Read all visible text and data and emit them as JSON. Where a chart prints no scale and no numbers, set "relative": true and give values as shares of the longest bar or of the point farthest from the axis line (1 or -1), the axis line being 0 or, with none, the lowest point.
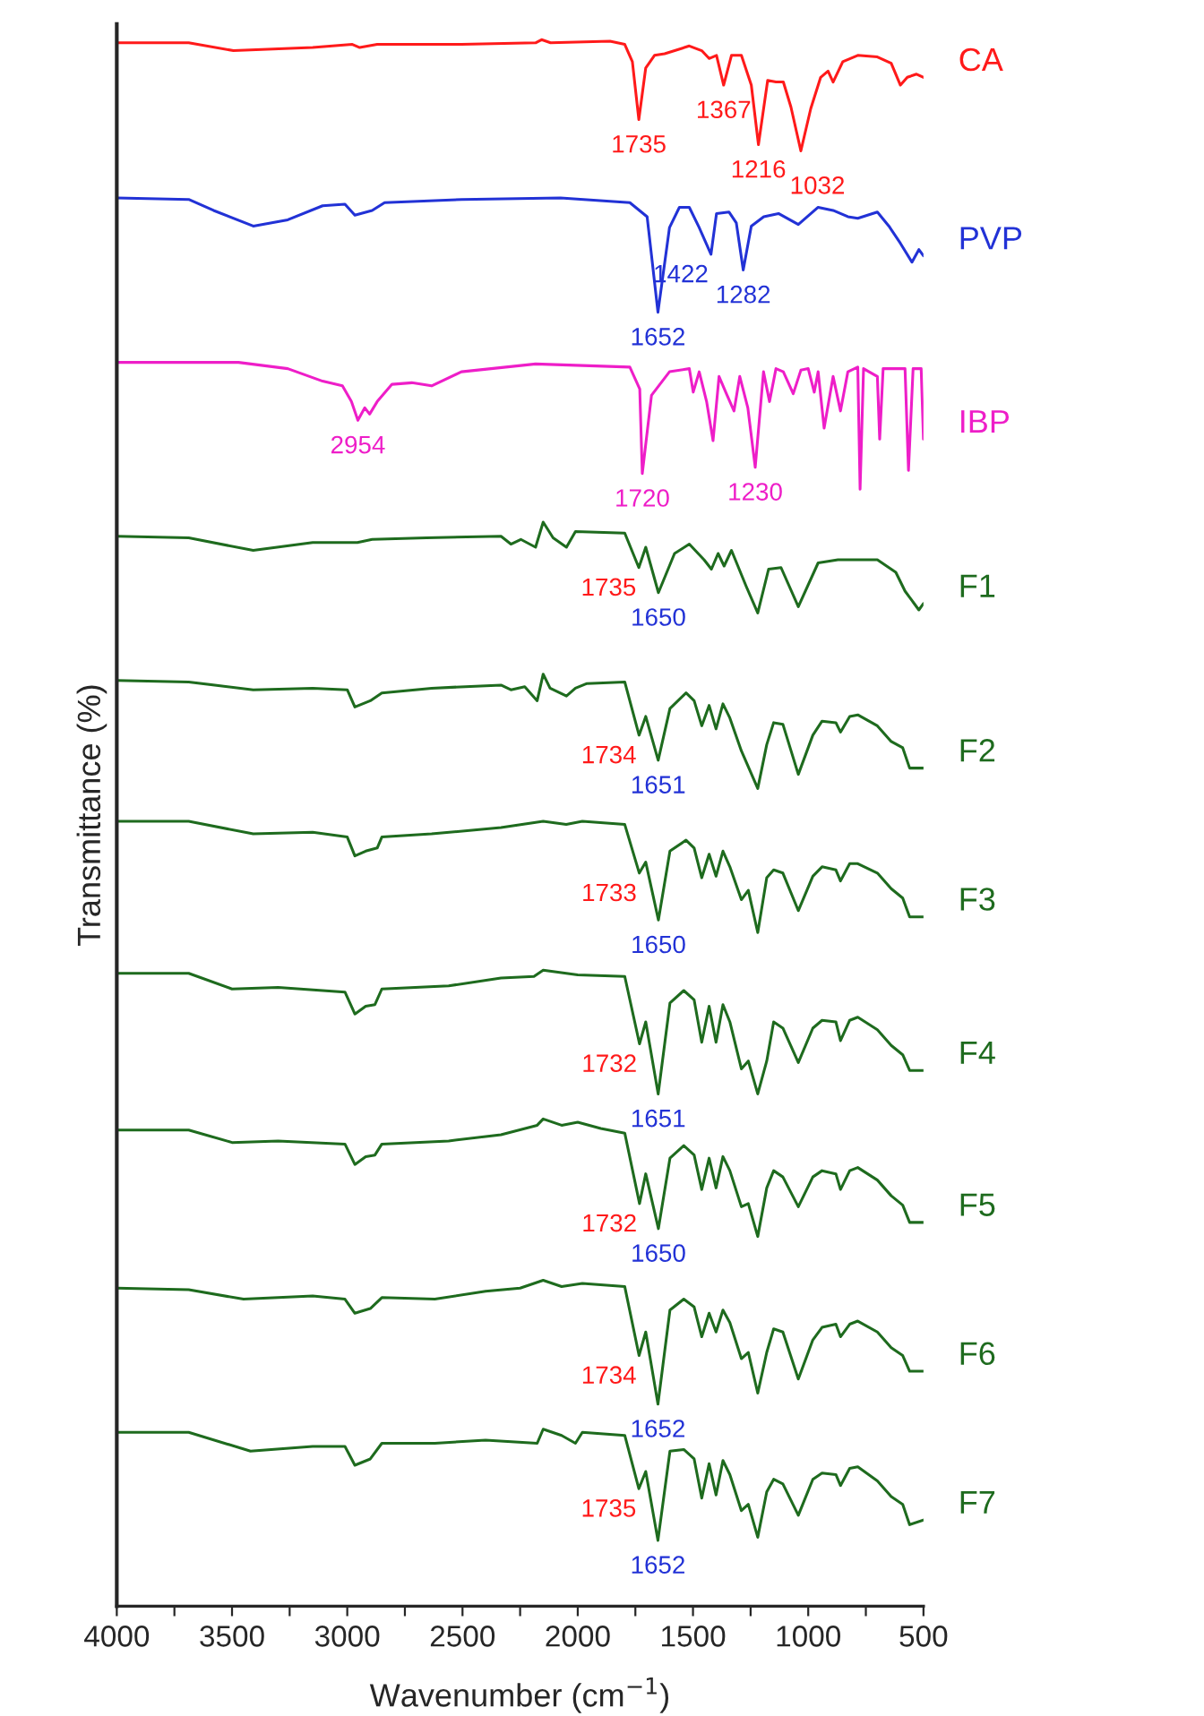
{
  "chart_data": {
    "type": "line",
    "relative": true,
    "xlabel": "Wavenumber (cm$^{−1}$)",
    "ylabel": "Transmittance (%)",
    "xlim": [
      4000,
      500
    ],
    "xticks": [
      4000,
      {
        "value": 3750,
        "label": null
      },
      3500,
      {
        "value": 3250,
        "label": null
      },
      3000,
      {
        "value": 2750,
        "label": null
      },
      2500,
      {
        "value": 2250,
        "label": null
      },
      2000,
      {
        "value": 1750,
        "label": null
      },
      1500,
      {
        "value": 1250,
        "label": null
      },
      1000,
      {
        "value": 750,
        "label": null
      },
      500
    ],
    "grid": false,
    "legend": false,
    "line_style": "solid",
    "marker": "none",
    "series": [
      {
        "name": "CA",
        "color": "#ff1a1a",
        "x": [
          4000,
          3688,
          3494,
          3150,
          2978,
          2946,
          2870,
          2505,
          2183,
          2157,
          2118,
          1860,
          1796,
          1763,
          1735,
          1705,
          1667,
          1623,
          1516,
          1462,
          1430,
          1398,
          1367,
          1333,
          1290,
          1247,
          1216,
          1176,
          1140,
          1108,
          1075,
          1032,
          989,
          946,
          914,
          892,
          850,
          785,
          700,
          640,
          600,
          570,
          530,
          500
        ],
        "values": [
          0.998,
          0.998,
          0.993,
          0.995,
          0.997,
          0.995,
          0.997,
          0.997,
          0.998,
          1.0,
          0.998,
          0.999,
          0.997,
          0.986,
          0.949,
          0.982,
          0.99,
          0.991,
          0.996,
          0.993,
          0.988,
          0.99,
          0.971,
          0.99,
          0.99,
          0.971,
          0.933,
          0.974,
          0.973,
          0.973,
          0.957,
          0.929,
          0.956,
          0.976,
          0.98,
          0.973,
          0.986,
          0.99,
          0.989,
          0.985,
          0.971,
          0.976,
          0.978,
          0.976
        ]
      },
      {
        "name": "PVP",
        "color": "#2232d6",
        "x": [
          4000,
          3688,
          3580,
          3408,
          3258,
          3107,
          3010,
          2967,
          2892,
          2838,
          2505,
          2075,
          1774,
          1699,
          1652,
          1602,
          1559,
          1516,
          1473,
          1422,
          1398,
          1344,
          1312,
          1282,
          1247,
          1193,
          1129,
          1043,
          957,
          892,
          828,
          785,
          700,
          650,
          600,
          550,
          520,
          500
        ],
        "values": [
          0.899,
          0.898,
          0.891,
          0.881,
          0.885,
          0.894,
          0.895,
          0.888,
          0.891,
          0.896,
          0.898,
          0.899,
          0.896,
          0.887,
          0.826,
          0.88,
          0.893,
          0.893,
          0.88,
          0.863,
          0.889,
          0.89,
          0.883,
          0.853,
          0.881,
          0.887,
          0.889,
          0.882,
          0.893,
          0.891,
          0.887,
          0.886,
          0.89,
          0.881,
          0.87,
          0.858,
          0.866,
          0.862
        ]
      },
      {
        "name": "IBP",
        "color": "#ee1ec8",
        "x": [
          4000,
          3472,
          3258,
          3107,
          3021,
          2982,
          2954,
          2924,
          2903,
          2870,
          2806,
          2720,
          2634,
          2505,
          2183,
          1774,
          1731,
          1720,
          1680,
          1602,
          1516,
          1499,
          1473,
          1441,
          1413,
          1387,
          1355,
          1322,
          1297,
          1262,
          1230,
          1194,
          1168,
          1140,
          1108,
          1065,
          1032,
          1000,
          974,
          957,
          931,
          892,
          860,
          828,
          785,
          775,
          760,
          700,
          690,
          675,
          640,
          580,
          565,
          545,
          510,
          500
        ],
        "values": [
          0.794,
          0.794,
          0.79,
          0.782,
          0.779,
          0.769,
          0.757,
          0.765,
          0.761,
          0.769,
          0.78,
          0.781,
          0.779,
          0.788,
          0.793,
          0.791,
          0.777,
          0.723,
          0.773,
          0.788,
          0.79,
          0.775,
          0.788,
          0.769,
          0.744,
          0.785,
          0.774,
          0.763,
          0.785,
          0.765,
          0.727,
          0.788,
          0.769,
          0.79,
          0.788,
          0.774,
          0.789,
          0.79,
          0.775,
          0.788,
          0.752,
          0.785,
          0.763,
          0.788,
          0.791,
          0.713,
          0.79,
          0.785,
          0.745,
          0.79,
          0.79,
          0.79,
          0.725,
          0.79,
          0.79,
          0.745
        ]
      },
      {
        "name": "F1",
        "color": "#1e6b1e",
        "x": [
          4000,
          3688,
          3408,
          3150,
          2956,
          2892,
          2656,
          2333,
          2290,
          2247,
          2183,
          2150,
          2107,
          2049,
          2010,
          1796,
          1735,
          1705,
          1650,
          1580,
          1516,
          1452,
          1420,
          1391,
          1365,
          1333,
          1269,
          1219,
          1172,
          1118,
          1043,
          957,
          871,
          785,
          700,
          620,
          580,
          540,
          520,
          500
        ],
        "values": [
          0.683,
          0.682,
          0.674,
          0.679,
          0.679,
          0.681,
          0.682,
          0.683,
          0.678,
          0.681,
          0.676,
          0.692,
          0.682,
          0.676,
          0.686,
          0.685,
          0.663,
          0.676,
          0.647,
          0.672,
          0.678,
          0.668,
          0.662,
          0.672,
          0.664,
          0.674,
          0.651,
          0.634,
          0.662,
          0.663,
          0.638,
          0.666,
          0.668,
          0.668,
          0.668,
          0.66,
          0.648,
          0.64,
          0.636,
          0.64
        ]
      },
      {
        "name": "F2",
        "color": "#1e6b1e",
        "x": [
          4000,
          3688,
          3408,
          3150,
          3000,
          2967,
          2900,
          2850,
          2634,
          2333,
          2290,
          2230,
          2176,
          2150,
          2120,
          2049,
          2010,
          1960,
          1796,
          1734,
          1705,
          1651,
          1600,
          1530,
          1495,
          1462,
          1430,
          1400,
          1370,
          1340,
          1290,
          1219,
          1180,
          1150,
          1110,
          1043,
          980,
          940,
          880,
          860,
          820,
          785,
          700,
          640,
          590,
          560,
          500
        ],
        "values": [
          0.591,
          0.59,
          0.585,
          0.586,
          0.585,
          0.574,
          0.578,
          0.583,
          0.586,
          0.588,
          0.585,
          0.587,
          0.578,
          0.595,
          0.586,
          0.581,
          0.586,
          0.589,
          0.59,
          0.556,
          0.568,
          0.54,
          0.573,
          0.583,
          0.578,
          0.562,
          0.575,
          0.56,
          0.576,
          0.567,
          0.546,
          0.522,
          0.55,
          0.564,
          0.563,
          0.531,
          0.556,
          0.565,
          0.564,
          0.558,
          0.568,
          0.569,
          0.562,
          0.552,
          0.548,
          0.535,
          0.535
        ]
      },
      {
        "name": "F3",
        "color": "#1e6b1e",
        "x": [
          4000,
          3688,
          3408,
          3150,
          3000,
          2967,
          2920,
          2870,
          2850,
          2634,
          2333,
          2150,
          2050,
          1980,
          1796,
          1733,
          1705,
          1650,
          1600,
          1530,
          1495,
          1462,
          1430,
          1400,
          1370,
          1340,
          1290,
          1260,
          1219,
          1180,
          1150,
          1110,
          1043,
          980,
          940,
          880,
          860,
          820,
          785,
          700,
          640,
          590,
          560,
          500
        ],
        "values": [
          0.501,
          0.501,
          0.493,
          0.494,
          0.491,
          0.479,
          0.482,
          0.484,
          0.491,
          0.493,
          0.497,
          0.501,
          0.499,
          0.501,
          0.499,
          0.468,
          0.475,
          0.438,
          0.482,
          0.489,
          0.484,
          0.465,
          0.48,
          0.466,
          0.482,
          0.472,
          0.451,
          0.457,
          0.43,
          0.465,
          0.47,
          0.468,
          0.444,
          0.466,
          0.472,
          0.47,
          0.463,
          0.474,
          0.474,
          0.468,
          0.458,
          0.452,
          0.44,
          0.44
        ]
      },
      {
        "name": "F4",
        "color": "#1e6b1e",
        "x": [
          4000,
          3688,
          3500,
          3300,
          3010,
          2967,
          2920,
          2880,
          2850,
          2560,
          2333,
          2190,
          2150,
          2000,
          1796,
          1732,
          1705,
          1651,
          1600,
          1540,
          1495,
          1462,
          1430,
          1400,
          1370,
          1340,
          1290,
          1260,
          1219,
          1180,
          1150,
          1110,
          1043,
          980,
          940,
          880,
          860,
          820,
          785,
          700,
          640,
          590,
          560,
          500
        ],
        "values": [
          0.404,
          0.404,
          0.394,
          0.395,
          0.392,
          0.378,
          0.383,
          0.384,
          0.394,
          0.396,
          0.401,
          0.402,
          0.406,
          0.403,
          0.402,
          0.359,
          0.373,
          0.327,
          0.385,
          0.393,
          0.387,
          0.36,
          0.383,
          0.36,
          0.384,
          0.373,
          0.343,
          0.348,
          0.327,
          0.348,
          0.373,
          0.369,
          0.347,
          0.369,
          0.374,
          0.373,
          0.361,
          0.374,
          0.376,
          0.368,
          0.358,
          0.352,
          0.342,
          0.342
        ]
      },
      {
        "name": "F5",
        "color": "#1e6b1e",
        "x": [
          4000,
          3688,
          3500,
          3300,
          3010,
          2967,
          2920,
          2880,
          2850,
          2560,
          2333,
          2176,
          2150,
          2070,
          2000,
          1900,
          1796,
          1732,
          1705,
          1650,
          1600,
          1540,
          1495,
          1462,
          1430,
          1400,
          1370,
          1340,
          1290,
          1260,
          1219,
          1180,
          1150,
          1110,
          1043,
          980,
          940,
          880,
          860,
          820,
          785,
          700,
          640,
          590,
          560,
          500
        ],
        "values": [
          0.304,
          0.304,
          0.296,
          0.297,
          0.295,
          0.282,
          0.287,
          0.288,
          0.295,
          0.297,
          0.301,
          0.307,
          0.311,
          0.307,
          0.309,
          0.305,
          0.302,
          0.257,
          0.276,
          0.241,
          0.286,
          0.294,
          0.288,
          0.266,
          0.286,
          0.267,
          0.287,
          0.278,
          0.255,
          0.257,
          0.236,
          0.267,
          0.278,
          0.274,
          0.255,
          0.274,
          0.278,
          0.276,
          0.266,
          0.278,
          0.28,
          0.272,
          0.262,
          0.256,
          0.245,
          0.245
        ]
      },
      {
        "name": "F6",
        "color": "#1e6b1e",
        "x": [
          4000,
          3688,
          3450,
          3150,
          3010,
          2967,
          2900,
          2850,
          2620,
          2400,
          2250,
          2150,
          2070,
          1980,
          1796,
          1734,
          1705,
          1652,
          1600,
          1540,
          1495,
          1462,
          1430,
          1400,
          1370,
          1340,
          1290,
          1260,
          1219,
          1180,
          1150,
          1110,
          1043,
          980,
          940,
          880,
          860,
          820,
          785,
          700,
          640,
          590,
          560,
          500
        ],
        "values": [
          0.203,
          0.202,
          0.196,
          0.198,
          0.196,
          0.187,
          0.19,
          0.197,
          0.196,
          0.201,
          0.203,
          0.208,
          0.204,
          0.206,
          0.204,
          0.16,
          0.175,
          0.129,
          0.189,
          0.196,
          0.191,
          0.172,
          0.187,
          0.175,
          0.189,
          0.181,
          0.158,
          0.162,
          0.136,
          0.162,
          0.177,
          0.175,
          0.145,
          0.17,
          0.178,
          0.18,
          0.172,
          0.18,
          0.182,
          0.175,
          0.165,
          0.16,
          0.15,
          0.15
        ]
      },
      {
        "name": "F7",
        "color": "#1e6b1e",
        "x": [
          4000,
          3688,
          3420,
          3150,
          3010,
          2967,
          2900,
          2850,
          2620,
          2400,
          2176,
          2150,
          2070,
          2010,
          1980,
          1796,
          1735,
          1705,
          1652,
          1600,
          1540,
          1495,
          1462,
          1430,
          1400,
          1370,
          1340,
          1290,
          1260,
          1219,
          1180,
          1150,
          1110,
          1043,
          980,
          940,
          880,
          860,
          820,
          785,
          700,
          640,
          590,
          560,
          500
        ],
        "values": [
          0.111,
          0.111,
          0.099,
          0.102,
          0.102,
          0.09,
          0.094,
          0.104,
          0.104,
          0.106,
          0.104,
          0.113,
          0.109,
          0.104,
          0.111,
          0.109,
          0.075,
          0.086,
          0.042,
          0.099,
          0.1,
          0.094,
          0.069,
          0.091,
          0.071,
          0.093,
          0.084,
          0.061,
          0.065,
          0.044,
          0.073,
          0.081,
          0.078,
          0.058,
          0.081,
          0.085,
          0.084,
          0.077,
          0.088,
          0.089,
          0.08,
          0.07,
          0.065,
          0.052,
          0.055
        ]
      }
    ],
    "annotations": [
      {
        "text": "1735",
        "x": 1735,
        "y": 0.949
      },
      {
        "text": "1367",
        "x": 1367,
        "y": 0.971
      },
      {
        "text": "1216",
        "x": 1216,
        "y": 0.933
      },
      {
        "text": "1032",
        "x": 1032,
        "y": 0.929
      },
      {
        "text": "1652",
        "x": 1652,
        "y": 0.826
      },
      {
        "text": "1422",
        "x": 1422,
        "y": 0.863
      },
      {
        "text": "1282",
        "x": 1282,
        "y": 0.853
      },
      {
        "text": "2954",
        "x": 2954,
        "y": 0.757
      },
      {
        "text": "1720",
        "x": 1720,
        "y": 0.723
      },
      {
        "text": "1230",
        "x": 1230,
        "y": 0.727
      },
      {
        "text": "1735",
        "x": 1735,
        "y": 0.663
      },
      {
        "text": "1650",
        "x": 1650,
        "y": 0.647
      },
      {
        "text": "1734",
        "x": 1734,
        "y": 0.556
      },
      {
        "text": "1651",
        "x": 1651,
        "y": 0.54
      },
      {
        "text": "1733",
        "x": 1733,
        "y": 0.468
      },
      {
        "text": "1650",
        "x": 1650,
        "y": 0.438
      },
      {
        "text": "1732",
        "x": 1732,
        "y": 0.359
      },
      {
        "text": "1651",
        "x": 1651,
        "y": 0.327
      },
      {
        "text": "1732",
        "x": 1732,
        "y": 0.257
      },
      {
        "text": "1650",
        "x": 1650,
        "y": 0.241
      },
      {
        "text": "1734",
        "x": 1734,
        "y": 0.16
      },
      {
        "text": "1652",
        "x": 1652,
        "y": 0.129
      },
      {
        "text": "1735",
        "x": 1735,
        "y": 0.075
      },
      {
        "text": "1652",
        "x": 1652,
        "y": 0.042
      }
    ]
  }
}
